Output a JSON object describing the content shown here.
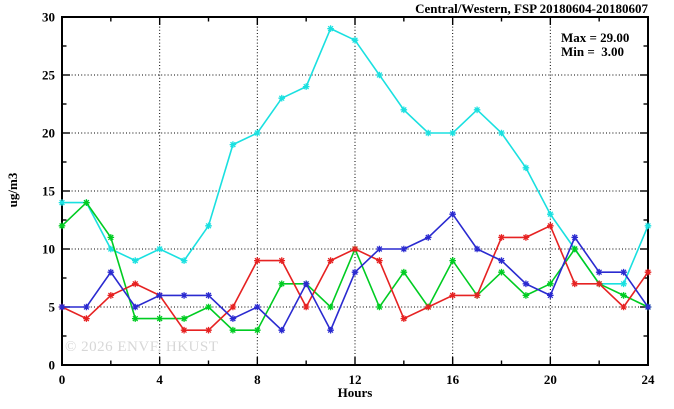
{
  "title": "Central/Western, FSP 20180604-20180607",
  "legend": {
    "max_label": "Max = 29.00",
    "min_label": "Min =  3.00"
  },
  "watermark": "© 2026 ENVF, HKUST",
  "axes": {
    "xlabel": "Hours",
    "ylabel": "ug/m3"
  },
  "colors": {
    "cyan": "#1ae0e0",
    "green": "#00cc22",
    "red": "#e62222",
    "blue": "#2a2ad0",
    "grid": "#000000",
    "watermark": "#d7d7d7"
  },
  "chart_data": {
    "type": "line",
    "title": "Central/Western, FSP 20180604-20180607",
    "xlabel": "Hours",
    "ylabel": "ug/m3",
    "xlim": [
      0,
      24
    ],
    "ylim": [
      0,
      30
    ],
    "grid": true,
    "legend_position": "top-right",
    "annotations": [
      "Max = 29.00",
      "Min =  3.00"
    ],
    "x_major_ticks": [
      0,
      4,
      8,
      12,
      16,
      20,
      24
    ],
    "x_tick_labels": [
      "0",
      "4",
      "8",
      "12",
      "16",
      "20",
      "24"
    ],
    "x_minor_ticks": [
      2,
      6,
      10,
      14,
      18,
      22
    ],
    "y_major_ticks": [
      0,
      5,
      10,
      15,
      20,
      25,
      30
    ],
    "y_tick_labels": [
      "0",
      "5",
      "10",
      "15",
      "20",
      "25",
      "30"
    ],
    "y_minor_ticks": [
      2.5,
      7.5,
      12.5,
      17.5,
      22.5,
      27.5
    ],
    "x": [
      0,
      1,
      2,
      3,
      4,
      5,
      6,
      7,
      8,
      9,
      10,
      11,
      12,
      13,
      14,
      15,
      16,
      17,
      18,
      19,
      20,
      21,
      22,
      23,
      24
    ],
    "series": [
      {
        "name": "cyan-series",
        "color": "#1ae0e0",
        "values": [
          14,
          14,
          10,
          9,
          10,
          9,
          12,
          19,
          20,
          23,
          24,
          29,
          28,
          25,
          22,
          20,
          20,
          22,
          20,
          17,
          13,
          10,
          7,
          7,
          12
        ]
      },
      {
        "name": "green-series",
        "color": "#00cc22",
        "values": [
          12,
          14,
          11,
          4,
          4,
          4,
          5,
          3,
          3,
          7,
          7,
          5,
          10,
          5,
          8,
          5,
          9,
          6,
          8,
          6,
          7,
          10,
          7,
          6,
          5
        ]
      },
      {
        "name": "red-series",
        "color": "#e62222",
        "values": [
          5,
          4,
          6,
          7,
          6,
          3,
          3,
          5,
          9,
          9,
          5,
          9,
          10,
          9,
          4,
          5,
          6,
          6,
          11,
          11,
          12,
          7,
          7,
          5,
          8
        ]
      },
      {
        "name": "blue-series",
        "color": "#2a2ad0",
        "values": [
          5,
          5,
          8,
          5,
          6,
          6,
          6,
          4,
          5,
          3,
          7,
          3,
          8,
          10,
          10,
          11,
          13,
          10,
          9,
          7,
          6,
          11,
          8,
          8,
          5
        ]
      }
    ],
    "stats": {
      "max": 29.0,
      "min": 3.0
    }
  }
}
